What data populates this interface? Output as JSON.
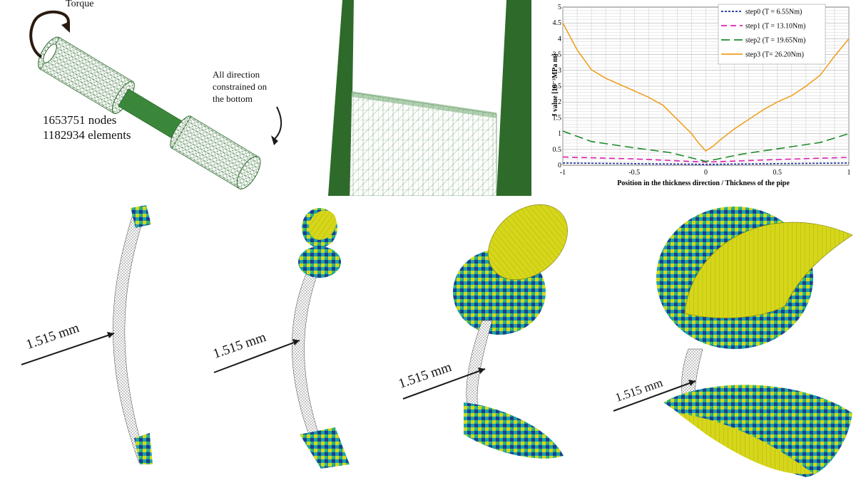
{
  "model": {
    "torque_label": "Torque",
    "constraint_lines": [
      "All direction",
      "constrained  on",
      "the bottom"
    ],
    "nodes_label": "1653751 nodes",
    "elements_label": "1182934 elements"
  },
  "dimension_label": "1.515 mm",
  "colors": {
    "mesh_dark": "#2f6b2f",
    "mesh_band": "#3f8f3f",
    "wall_green": "#2e6b2a",
    "yellow": "#d6d61a",
    "teal": "#1aa3a3",
    "blue": "#1d3f8f",
    "crack_mesh": "#555555"
  },
  "chart_data": {
    "type": "line",
    "title": "",
    "xlabel": "Position in the thickness direction  /  Thickness of the pipe",
    "ylabel": "J value [10⁻³MPa m]",
    "xlim": [
      -1,
      1
    ],
    "ylim": [
      0,
      5
    ],
    "x_ticks": [
      "-1",
      "-0.5",
      "0",
      "0.5",
      "1"
    ],
    "y_ticks": [
      "0",
      "0.5",
      "1",
      "1.5",
      "2",
      "2.5",
      "3",
      "3.5",
      "4",
      "4.5",
      "5"
    ],
    "grid": true,
    "legend_position": "top-right",
    "series": [
      {
        "name": "step0 (T = 6.55Nm)",
        "color": "#1c2f9c",
        "dash": "3,2",
        "x": [
          -1,
          -0.5,
          0,
          0.5,
          1
        ],
        "y": [
          0.07,
          0.05,
          0.03,
          0.05,
          0.07
        ]
      },
      {
        "name": "step1 (T = 13.10Nm)",
        "color": "#e020b0",
        "dash": "8,5",
        "x": [
          -1,
          -0.5,
          0,
          0.5,
          1
        ],
        "y": [
          0.26,
          0.2,
          0.1,
          0.18,
          0.25
        ]
      },
      {
        "name": "step2 (T = 19.65Nm)",
        "color": "#1e8c2a",
        "dash": "12,6",
        "x": [
          -1,
          -0.8,
          -0.5,
          -0.25,
          0,
          0.25,
          0.5,
          0.8,
          1
        ],
        "y": [
          1.08,
          0.75,
          0.55,
          0.4,
          0.12,
          0.35,
          0.52,
          0.72,
          1.0
        ]
      },
      {
        "name": "step3 (T= 26.20Nm)",
        "color": "#f0a020",
        "dash": "",
        "x": [
          -1,
          -0.9,
          -0.8,
          -0.7,
          -0.6,
          -0.5,
          -0.4,
          -0.3,
          -0.2,
          -0.1,
          -0.05,
          0,
          0.05,
          0.1,
          0.2,
          0.3,
          0.4,
          0.5,
          0.6,
          0.7,
          0.8,
          0.9,
          1
        ],
        "y": [
          4.5,
          3.65,
          3.02,
          2.75,
          2.55,
          2.35,
          2.15,
          1.9,
          1.45,
          1.0,
          0.7,
          0.45,
          0.6,
          0.8,
          1.15,
          1.45,
          1.75,
          2.0,
          2.2,
          2.5,
          2.85,
          3.45,
          4.0
        ]
      }
    ]
  }
}
